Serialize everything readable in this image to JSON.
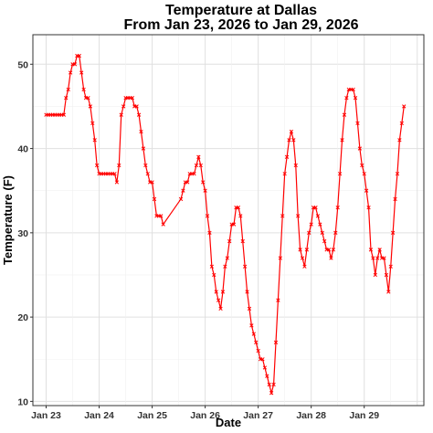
{
  "chart_data": {
    "type": "line",
    "title": "Temperature at Dallas",
    "subtitle": "From Jan 23, 2026 to Jan 29, 2026",
    "xlabel": "Date",
    "ylabel": "Temperature (F)",
    "xlim": [
      "2026-01-22T18:00",
      "2026-01-30T03:00"
    ],
    "ylim": [
      9.5,
      53.5
    ],
    "grid": true,
    "line_color": "#ff0000",
    "marker": "x",
    "x_tick_labels": [
      "Jan 23",
      "Jan 24",
      "Jan 25",
      "Jan 26",
      "Jan 27",
      "Jan 28",
      "Jan 29"
    ],
    "y_ticks": [
      10,
      20,
      30,
      40,
      50
    ],
    "series": [
      {
        "x": [
          "2026-01-23T00:00",
          "2026-01-23T01:00",
          "2026-01-23T02:00",
          "2026-01-23T03:00",
          "2026-01-23T04:00",
          "2026-01-23T05:00",
          "2026-01-23T06:00",
          "2026-01-23T07:00",
          "2026-01-23T08:00",
          "2026-01-23T09:00",
          "2026-01-23T10:00",
          "2026-01-23T11:00",
          "2026-01-23T12:00",
          "2026-01-23T13:00",
          "2026-01-23T14:00",
          "2026-01-23T15:00",
          "2026-01-23T16:00",
          "2026-01-23T17:00",
          "2026-01-23T18:00",
          "2026-01-23T19:00",
          "2026-01-23T20:00",
          "2026-01-23T21:00",
          "2026-01-23T22:00",
          "2026-01-23T23:00",
          "2026-01-24T00:00",
          "2026-01-24T01:00",
          "2026-01-24T02:00",
          "2026-01-24T03:00",
          "2026-01-24T04:00",
          "2026-01-24T05:00",
          "2026-01-24T06:00",
          "2026-01-24T07:00",
          "2026-01-24T08:00",
          "2026-01-24T09:00",
          "2026-01-24T10:00",
          "2026-01-24T11:00",
          "2026-01-24T12:00",
          "2026-01-24T13:00",
          "2026-01-24T14:00",
          "2026-01-24T15:00",
          "2026-01-24T16:00",
          "2026-01-24T17:00",
          "2026-01-24T18:00",
          "2026-01-24T19:00",
          "2026-01-24T20:00",
          "2026-01-24T21:00",
          "2026-01-24T22:00",
          "2026-01-24T23:00",
          "2026-01-25T00:00",
          "2026-01-25T01:00",
          "2026-01-25T02:00",
          "2026-01-25T03:00",
          "2026-01-25T04:00",
          "2026-01-25T05:00",
          "2026-01-25T13:00",
          "2026-01-25T14:00",
          "2026-01-25T15:00",
          "2026-01-25T16:00",
          "2026-01-25T17:00",
          "2026-01-25T18:00",
          "2026-01-25T19:00",
          "2026-01-25T20:00",
          "2026-01-25T21:00",
          "2026-01-25T22:00",
          "2026-01-25T23:00",
          "2026-01-26T00:00",
          "2026-01-26T01:00",
          "2026-01-26T02:00",
          "2026-01-26T03:00",
          "2026-01-26T04:00",
          "2026-01-26T05:00",
          "2026-01-26T06:00",
          "2026-01-26T07:00",
          "2026-01-26T08:00",
          "2026-01-26T09:00",
          "2026-01-26T10:00",
          "2026-01-26T11:00",
          "2026-01-26T12:00",
          "2026-01-26T13:00",
          "2026-01-26T14:00",
          "2026-01-26T15:00",
          "2026-01-26T16:00",
          "2026-01-26T17:00",
          "2026-01-26T18:00",
          "2026-01-26T19:00",
          "2026-01-26T20:00",
          "2026-01-26T21:00",
          "2026-01-26T22:00",
          "2026-01-26T23:00",
          "2026-01-27T00:00",
          "2026-01-27T01:00",
          "2026-01-27T02:00",
          "2026-01-27T03:00",
          "2026-01-27T04:00",
          "2026-01-27T05:00",
          "2026-01-27T06:00",
          "2026-01-27T07:00",
          "2026-01-27T08:00",
          "2026-01-27T09:00",
          "2026-01-27T10:00",
          "2026-01-27T11:00",
          "2026-01-27T12:00",
          "2026-01-27T13:00",
          "2026-01-27T14:00",
          "2026-01-27T15:00",
          "2026-01-27T16:00",
          "2026-01-27T17:00",
          "2026-01-27T18:00",
          "2026-01-27T19:00",
          "2026-01-27T20:00",
          "2026-01-27T21:00",
          "2026-01-27T22:00",
          "2026-01-27T23:00",
          "2026-01-28T00:00",
          "2026-01-28T01:00",
          "2026-01-28T02:00",
          "2026-01-28T03:00",
          "2026-01-28T04:00",
          "2026-01-28T05:00",
          "2026-01-28T06:00",
          "2026-01-28T07:00",
          "2026-01-28T08:00",
          "2026-01-28T09:00",
          "2026-01-28T10:00",
          "2026-01-28T11:00",
          "2026-01-28T12:00",
          "2026-01-28T13:00",
          "2026-01-28T14:00",
          "2026-01-28T15:00",
          "2026-01-28T16:00",
          "2026-01-28T17:00",
          "2026-01-28T18:00",
          "2026-01-28T19:00",
          "2026-01-28T20:00",
          "2026-01-28T21:00",
          "2026-01-28T22:00",
          "2026-01-28T23:00",
          "2026-01-29T00:00",
          "2026-01-29T01:00",
          "2026-01-29T02:00",
          "2026-01-29T03:00",
          "2026-01-29T04:00",
          "2026-01-29T05:00",
          "2026-01-29T06:00",
          "2026-01-29T07:00",
          "2026-01-29T08:00",
          "2026-01-29T09:00",
          "2026-01-29T10:00",
          "2026-01-29T11:00",
          "2026-01-29T12:00",
          "2026-01-29T13:00",
          "2026-01-29T14:00",
          "2026-01-29T15:00",
          "2026-01-29T16:00",
          "2026-01-29T17:00",
          "2026-01-29T18:00"
        ],
        "y": [
          44,
          44,
          44,
          44,
          44,
          44,
          44,
          44,
          44,
          46,
          47,
          49,
          50,
          50,
          51,
          51,
          49,
          47,
          46,
          46,
          45,
          43,
          41,
          38,
          37,
          37,
          37,
          37,
          37,
          37,
          37,
          37,
          36,
          38,
          44,
          45,
          46,
          46,
          46,
          46,
          45,
          45,
          44,
          42,
          40,
          38,
          37,
          36,
          36,
          34,
          32,
          32,
          32,
          31,
          34,
          35,
          36,
          36,
          37,
          37,
          37,
          38,
          39,
          38,
          36,
          35,
          32,
          30,
          26,
          25,
          23,
          22,
          21,
          23,
          26,
          27,
          29,
          31,
          31,
          33,
          33,
          32,
          29,
          26,
          23,
          21,
          19,
          18,
          17,
          16,
          15,
          15,
          14,
          13,
          12,
          11,
          12,
          17,
          22,
          27,
          32,
          37,
          39,
          41,
          42,
          41,
          38,
          32,
          28,
          27,
          26,
          28,
          30,
          31,
          33,
          33,
          32,
          31,
          30,
          29,
          28,
          28,
          27,
          28,
          30,
          33,
          37,
          41,
          44,
          46,
          47,
          47,
          47,
          46,
          43,
          40,
          38,
          37,
          35,
          33,
          28,
          27,
          25,
          27,
          28,
          27,
          27,
          25,
          23,
          26,
          30,
          34,
          37,
          41,
          43,
          45
        ]
      }
    ]
  }
}
